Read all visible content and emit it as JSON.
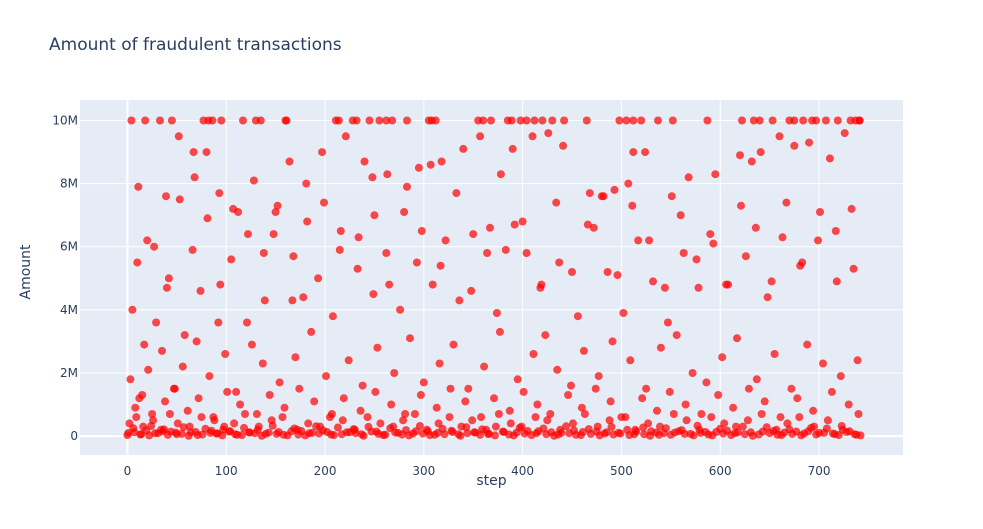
{
  "chart_data": {
    "type": "scatter",
    "title": "Amount of fraudulent transactions",
    "xlabel": "step",
    "ylabel": "Amount",
    "xlim": [
      -48,
      785
    ],
    "ylim": [
      -600000,
      10650000
    ],
    "x_ticks": [
      0,
      100,
      200,
      300,
      400,
      500,
      600,
      700
    ],
    "x_tick_labels": [
      "0",
      "100",
      "200",
      "300",
      "400",
      "500",
      "600",
      "700"
    ],
    "y_ticks": [
      0,
      2000000,
      4000000,
      6000000,
      8000000,
      10000000
    ],
    "y_tick_labels": [
      "0",
      "2M",
      "4M",
      "6M",
      "8M",
      "10M"
    ],
    "grid": true,
    "legend": "none",
    "plot_background": "#e5ecf6",
    "marker_color": "#ff0000",
    "marker_opacity": 0.7,
    "series": [
      {
        "x": [
          4,
          18,
          33,
          45,
          77,
          82,
          86,
          95,
          117,
          130,
          135,
          160,
          161,
          211,
          214,
          228,
          232,
          245,
          255,
          262,
          268,
          283,
          305,
          308,
          312,
          355,
          360,
          368,
          385,
          389,
          398,
          404,
          412,
          420,
          430,
          442,
          465,
          498,
          505,
          512,
          520,
          537,
          552,
          587,
          622,
          634,
          640,
          653,
          670,
          675,
          684,
          693,
          697,
          707,
          719,
          732,
          737,
          741,
          741,
          10,
          20,
          39,
          52,
          68,
          80,
          93,
          112,
          128,
          150,
          164,
          181,
          197,
          221,
          240,
          248,
          263,
          283,
          295,
          307,
          318,
          340,
          357,
          378,
          390,
          410,
          426,
          441,
          468,
          480,
          493,
          507,
          512,
          524,
          551,
          568,
          595,
          620,
          632,
          641,
          660,
          675,
          690,
          711,
          726,
          5,
          17,
          29,
          42,
          58,
          66,
          74,
          92,
          105,
          121,
          139,
          148,
          168,
          178,
          193,
          208,
          216,
          233,
          249,
          262,
          276,
          293,
          309,
          322,
          336,
          350,
          364,
          374,
          392,
          404,
          418,
          437,
          456,
          472,
          486,
          502,
          517,
          532,
          547,
          563,
          578,
          593,
          608,
          626,
          648,
          663,
          681,
          699,
          718,
          735,
          3,
          12,
          21,
          35,
          48,
          56,
          70,
          83,
          99,
          110,
          126,
          137,
          154,
          170,
          186,
          201,
          224,
          238,
          253,
          270,
          286,
          300,
          316,
          330,
          345,
          361,
          377,
          395,
          411,
          423,
          435,
          449,
          462,
          477,
          491,
          509,
          525,
          540,
          556,
          572,
          586,
          602,
          617,
          637,
          655,
          672,
          688,
          704,
          722,
          739,
          8,
          15,
          25,
          38,
          47,
          61,
          72,
          87,
          101,
          114,
          131,
          144,
          159,
          174,
          189,
          205,
          219,
          236,
          251,
          267,
          281,
          297,
          313,
          327,
          342,
          358,
          371,
          387,
          401,
          415,
          428,
          446,
          460,
          474,
          489,
          504,
          521,
          536,
          549,
          565,
          581,
          598,
          613,
          629,
          645,
          661,
          678,
          694,
          713,
          730,
          2,
          9,
          16,
          26,
          34,
          43,
          51,
          63,
          75,
          88,
          97,
          108,
          119,
          133,
          146,
          157,
          172,
          183,
          195,
          207,
          218,
          230,
          243,
          256,
          269,
          279,
          291,
          303,
          315,
          326,
          338,
          349,
          363,
          376,
          388,
          399,
          413,
          425,
          438,
          451,
          463,
          476,
          488,
          500,
          514,
          527,
          539,
          553,
          566,
          579,
          591,
          604,
          616,
          628,
          642,
          657,
          668,
          680,
          695,
          709,
          724,
          740,
          1,
          6,
          13,
          19,
          24,
          31,
          37,
          44,
          50,
          57,
          64,
          71,
          79,
          85,
          91,
          98,
          104,
          111,
          118,
          124,
          132,
          140,
          147,
          153,
          162,
          169,
          176,
          184,
          191,
          198,
          206,
          213,
          222,
          229,
          237,
          244,
          252,
          259,
          266,
          274,
          282,
          289,
          296,
          304,
          311,
          319,
          328,
          335,
          343,
          352,
          359,
          366,
          373,
          381,
          391,
          397,
          405,
          414,
          421,
          429,
          436,
          444,
          452,
          459,
          467,
          475,
          483,
          490,
          497,
          506,
          513,
          522,
          530,
          538,
          545,
          554,
          561,
          570,
          577,
          585,
          592,
          600,
          607,
          615,
          623,
          631,
          639,
          647,
          654,
          662,
          670,
          677,
          685,
          692,
          700,
          708,
          716,
          723,
          731,
          738,
          0,
          7,
          14,
          22,
          28,
          36,
          41,
          49,
          55,
          62,
          69,
          76,
          84,
          90,
          96,
          103,
          109,
          116,
          123,
          129,
          136,
          143,
          151,
          158,
          166,
          173,
          180,
          187,
          194,
          202,
          209,
          217,
          225,
          231,
          239,
          247,
          254,
          261,
          271,
          278,
          285,
          292,
          299,
          306,
          314,
          321,
          329,
          337,
          344,
          351,
          357,
          365,
          372,
          380,
          386,
          394,
          402,
          409,
          416,
          424,
          432,
          439,
          447,
          454,
          461,
          469,
          478,
          485,
          492,
          499,
          508,
          515,
          523,
          529,
          535,
          543,
          550,
          558,
          564,
          573,
          580,
          588,
          596,
          603,
          611,
          618,
          625,
          633,
          643,
          650,
          658,
          665,
          673,
          682,
          689,
          697,
          705,
          714,
          720,
          728,
          736,
          742,
          11,
          27,
          40,
          53,
          67,
          81,
          94,
          107,
          122,
          138,
          152,
          167,
          182,
          199,
          215,
          234,
          250,
          265,
          280,
          298,
          317,
          333,
          348,
          367,
          383,
          400,
          419,
          434,
          450,
          466,
          482,
          496,
          511,
          528,
          544,
          560,
          576,
          590,
          606,
          621,
          636,
          652,
          667,
          683,
          701,
          717,
          733
        ],
        "y": [
          10000000,
          10000000,
          10000000,
          10000000,
          10000000,
          10000000,
          10000000,
          10000000,
          10000000,
          10000000,
          10000000,
          10000000,
          10000000,
          10000000,
          10000000,
          10000000,
          10000000,
          10000000,
          10000000,
          10000000,
          10000000,
          10000000,
          10000000,
          10000000,
          10000000,
          10000000,
          10000000,
          10000000,
          10000000,
          10000000,
          10000000,
          10000000,
          10000000,
          10000000,
          10000000,
          10000000,
          10000000,
          10000000,
          10000000,
          10000000,
          10000000,
          10000000,
          10000000,
          10000000,
          10000000,
          10000000,
          10000000,
          10000000,
          10000000,
          10000000,
          10000000,
          10000000,
          10000000,
          10000000,
          10000000,
          10000000,
          10000000,
          10000000,
          10000000,
          5500000,
          6200000,
          7600000,
          9500000,
          8200000,
          9000000,
          7700000,
          7100000,
          8100000,
          7100000,
          8700000,
          8000000,
          9000000,
          9500000,
          8700000,
          8200000,
          8300000,
          7900000,
          8500000,
          8600000,
          8700000,
          9100000,
          9500000,
          8300000,
          9100000,
          9500000,
          9600000,
          9200000,
          7700000,
          7600000,
          7800000,
          8000000,
          9000000,
          9000000,
          7600000,
          8200000,
          8300000,
          8900000,
          8700000,
          9000000,
          9500000,
          9200000,
          9300000,
          8800000,
          9600000,
          4000000,
          2900000,
          3600000,
          5000000,
          3200000,
          5900000,
          4600000,
          3600000,
          5600000,
          3600000,
          4300000,
          6400000,
          5700000,
          4400000,
          5000000,
          3800000,
          6500000,
          5300000,
          4500000,
          5800000,
          4000000,
          5500000,
          4800000,
          6200000,
          4300000,
          6400000,
          5800000,
          3900000,
          6700000,
          5800000,
          4700000,
          5500000,
          3800000,
          6600000,
          5200000,
          3900000,
          6200000,
          4900000,
          3600000,
          5800000,
          4700000,
          6100000,
          4800000,
          5700000,
          4400000,
          6300000,
          5400000,
          6200000,
          4900000,
          5300000,
          1800000,
          1200000,
          2100000,
          2700000,
          1500000,
          2200000,
          3000000,
          1900000,
          2600000,
          1400000,
          2900000,
          2300000,
          1700000,
          2500000,
          3300000,
          1900000,
          2400000,
          1600000,
          2800000,
          2000000,
          3100000,
          1700000,
          2300000,
          2900000,
          1500000,
          2200000,
          3300000,
          1800000,
          2600000,
          3200000,
          2100000,
          1600000,
          2700000,
          1900000,
          3000000,
          2400000,
          1500000,
          2800000,
          3200000,
          2000000,
          1700000,
          2500000,
          3100000,
          1800000,
          2600000,
          1500000,
          2900000,
          2300000,
          1900000,
          2400000,
          900000,
          1300000,
          700000,
          1100000,
          1500000,
          800000,
          1200000,
          600000,
          1400000,
          1000000,
          700000,
          1300000,
          900000,
          1500000,
          1100000,
          600000,
          1200000,
          800000,
          1400000,
          1000000,
          700000,
          1300000,
          900000,
          1500000,
          1100000,
          600000,
          1200000,
          800000,
          1400000,
          1000000,
          700000,
          1300000,
          900000,
          1500000,
          1100000,
          600000,
          1200000,
          800000,
          1400000,
          1000000,
          700000,
          1300000,
          900000,
          1500000,
          1100000,
          600000,
          1200000,
          800000,
          1400000,
          1000000,
          400000,
          600000,
          300000,
          500000,
          200000,
          700000,
          400000,
          300000,
          600000,
          500000,
          200000,
          400000,
          700000,
          300000,
          500000,
          600000,
          200000,
          400000,
          300000,
          700000,
          500000,
          200000,
          600000,
          400000,
          300000,
          500000,
          700000,
          200000,
          400000,
          600000,
          300000,
          500000,
          200000,
          700000,
          400000,
          300000,
          600000,
          500000,
          200000,
          400000,
          700000,
          300000,
          500000,
          600000,
          200000,
          400000,
          300000,
          700000,
          500000,
          200000,
          600000,
          400000,
          300000,
          500000,
          700000,
          200000,
          400000,
          600000,
          300000,
          500000,
          200000,
          700000,
          100000,
          250000,
          50000,
          180000,
          320000,
          90000,
          210000,
          140000,
          60000,
          280000,
          120000,
          30000,
          230000,
          170000,
          80000,
          300000,
          150000,
          40000,
          260000,
          110000,
          200000,
          70000,
          330000,
          130000,
          20000,
          240000,
          160000,
          90000,
          310000,
          180000,
          50000,
          270000,
          120000,
          220000,
          60000,
          290000,
          140000,
          30000,
          250000,
          100000,
          190000,
          80000,
          320000,
          150000,
          40000,
          230000,
          170000,
          60000,
          280000,
          110000,
          210000,
          70000,
          300000,
          130000,
          20000,
          260000,
          160000,
          90000,
          240000,
          120000,
          50000,
          310000,
          180000,
          30000,
          220000,
          140000,
          80000,
          290000,
          100000,
          200000,
          60000,
          270000,
          150000,
          40000,
          250000,
          110000,
          190000,
          70000,
          330000,
          130000,
          20000,
          230000,
          170000,
          90000,
          300000,
          120000,
          50000,
          280000,
          160000,
          30000,
          210000,
          140000,
          80000,
          260000,
          100000,
          240000,
          60000,
          320000,
          150000,
          40000,
          30000,
          120000,
          60000,
          20000,
          90000,
          150000,
          40000,
          110000,
          70000,
          10000,
          130000,
          50000,
          100000,
          80000,
          20000,
          140000,
          60000,
          30000,
          120000,
          90000,
          10000,
          110000,
          70000,
          40000,
          150000,
          50000,
          20000,
          100000,
          80000,
          130000,
          30000,
          60000,
          120000,
          90000,
          10000,
          140000,
          70000,
          40000,
          110000,
          50000,
          20000,
          150000,
          80000,
          30000,
          100000,
          60000,
          130000,
          10000,
          90000,
          120000,
          40000,
          70000,
          20000,
          140000,
          50000,
          110000,
          80000,
          30000,
          150000,
          60000,
          10000,
          100000,
          90000,
          40000,
          130000,
          70000,
          20000,
          120000,
          50000,
          80000,
          30000,
          140000,
          60000,
          10000,
          110000,
          90000,
          40000,
          150000,
          70000,
          20000,
          100000,
          50000,
          130000,
          80000,
          30000,
          120000,
          60000,
          10000,
          140000,
          90000,
          40000,
          110000,
          70000,
          20000,
          150000,
          50000,
          100000,
          80000,
          30000,
          130000,
          60000,
          20000,
          7900000,
          6000000,
          4700000,
          7500000,
          9000000,
          6900000,
          4800000,
          7200000,
          6400000,
          5800000,
          7300000,
          4300000,
          6800000,
          7400000,
          5900000,
          6300000,
          7000000,
          4800000,
          7100000,
          6500000,
          5400000,
          7700000,
          4600000,
          6600000,
          5900000,
          6800000,
          4800000,
          7400000,
          5200000,
          6700000,
          7600000,
          5100000,
          7300000,
          6200000,
          4700000,
          7000000,
          5600000,
          6400000,
          4800000,
          7300000,
          6600000,
          4900000,
          7400000,
          5500000,
          7100000,
          6500000,
          7200000
        ]
      }
    ]
  }
}
